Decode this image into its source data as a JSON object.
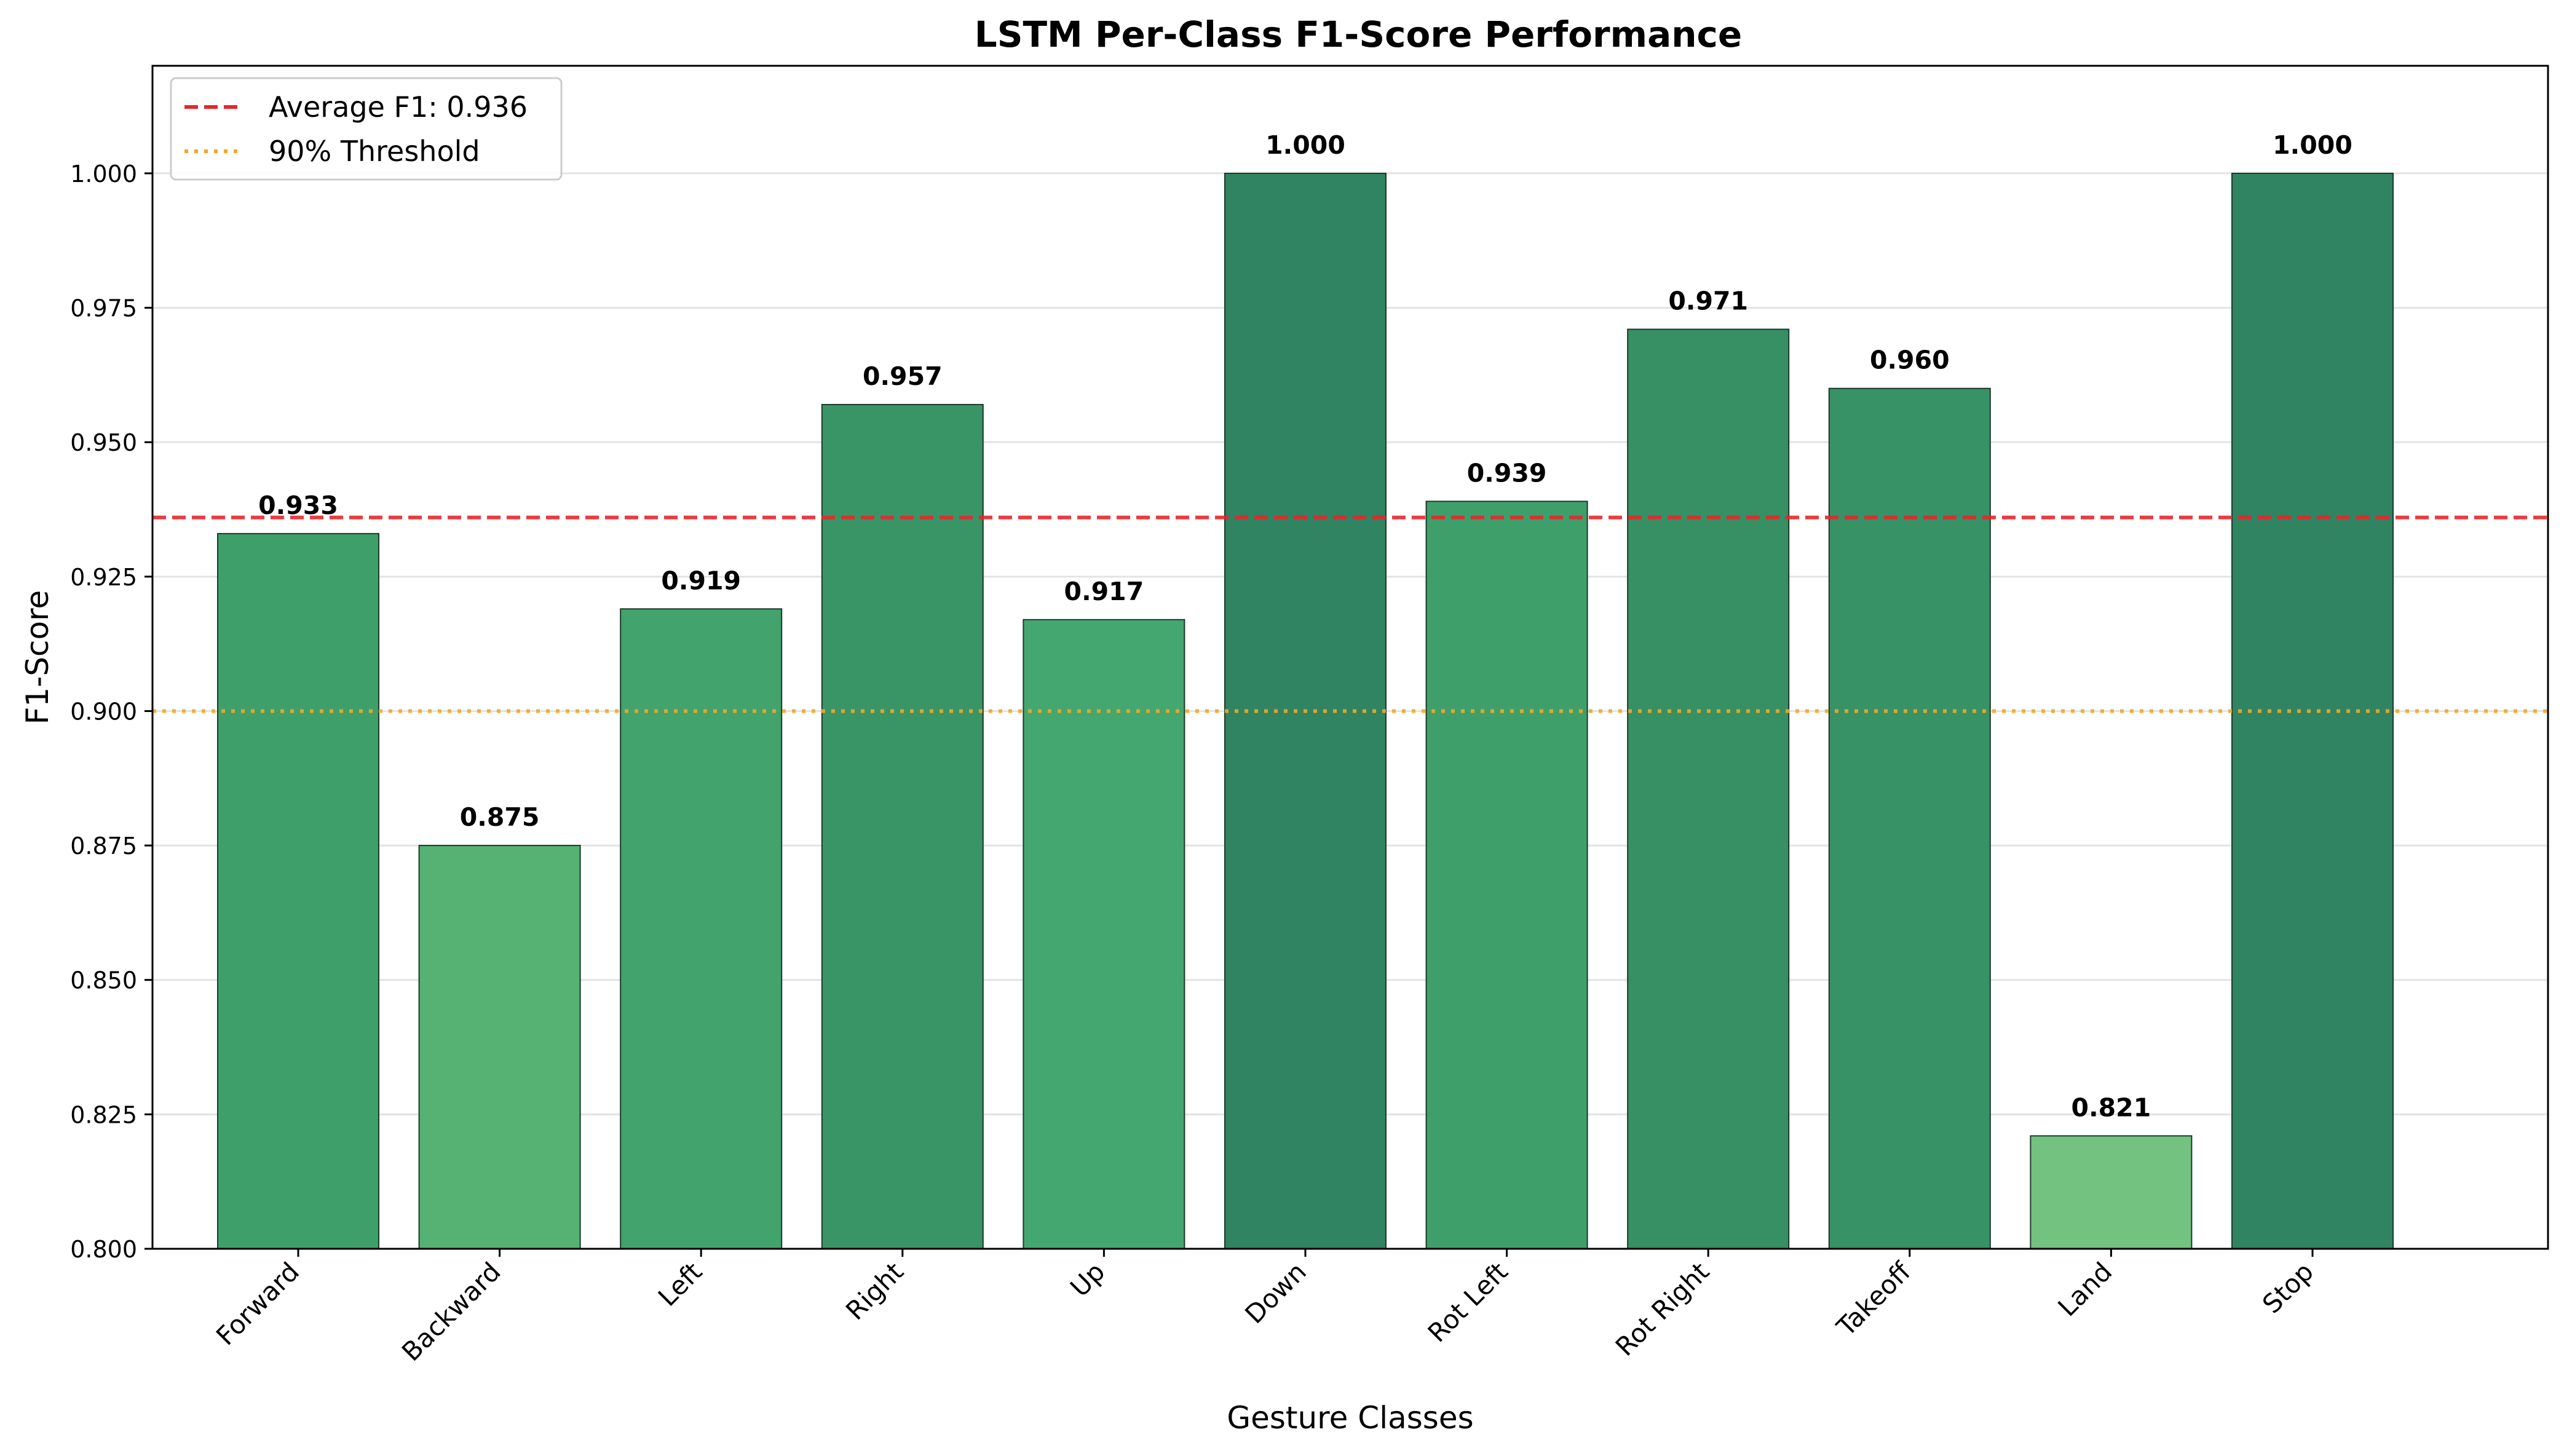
{
  "chart_data": {
    "type": "bar",
    "title": "LSTM Per-Class F1-Score Performance",
    "xlabel": "Gesture Classes",
    "ylabel": "F1-Score",
    "categories": [
      "Forward",
      "Backward",
      "Left",
      "Right",
      "Up",
      "Down",
      "Rot Left",
      "Rot Right",
      "Takeoff",
      "Land",
      "Stop"
    ],
    "values": [
      0.933,
      0.875,
      0.919,
      0.957,
      0.917,
      1.0,
      0.939,
      0.971,
      0.96,
      0.821,
      1.0
    ],
    "value_labels": [
      "0.933",
      "0.875",
      "0.919",
      "0.957",
      "0.917",
      "1.000",
      "0.939",
      "0.971",
      "0.960",
      "0.821",
      "1.000"
    ],
    "bar_colors": [
      "#3e9f6a",
      "#55b272",
      "#42a36d",
      "#3a9566",
      "#44a76f",
      "#308461",
      "#3f9f6b",
      "#369063",
      "#379266",
      "#74c27f",
      "#308461"
    ],
    "ylim": [
      0.8,
      1.02
    ],
    "yticks": [
      0.8,
      0.825,
      0.85,
      0.875,
      0.9,
      0.925,
      0.95,
      0.975,
      1.0
    ],
    "ytick_labels": [
      "0.800",
      "0.825",
      "0.850",
      "0.875",
      "0.900",
      "0.925",
      "0.950",
      "0.975",
      "1.000"
    ],
    "grid": "y",
    "reference_lines": [
      {
        "label": "Average F1: 0.936",
        "value": 0.936,
        "color": "#e8262b",
        "style": "dashed"
      },
      {
        "label": "90% Threshold",
        "value": 0.9,
        "color": "#f5a623",
        "style": "dotted"
      }
    ],
    "legend_position": "top-left"
  }
}
